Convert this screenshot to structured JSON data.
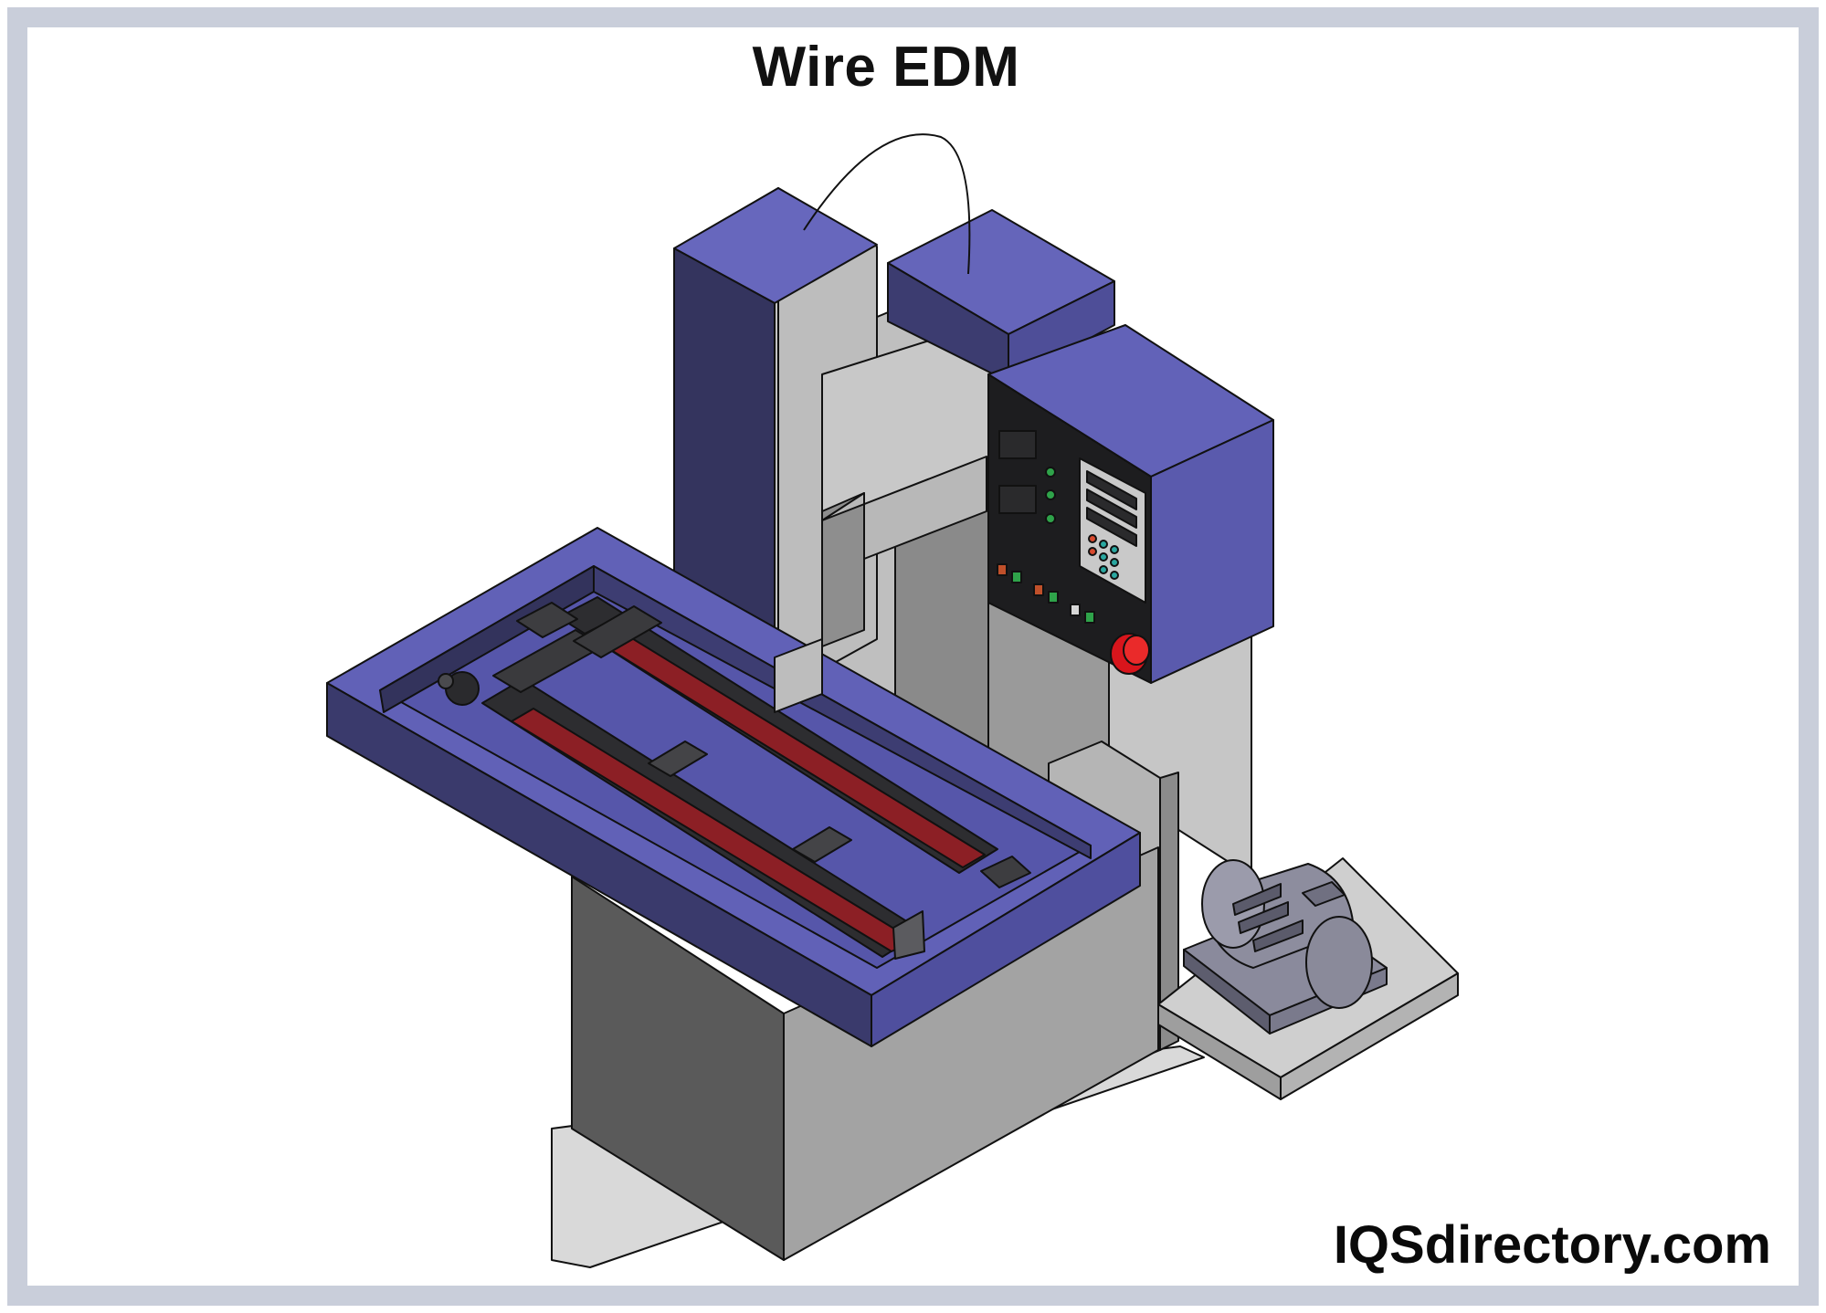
{
  "title": "Wire EDM",
  "watermark": "IQSdirectory.com",
  "colors": {
    "frame_border": "#c9ceda",
    "machine_blue": "#5f5fb4",
    "machine_blue_dark": "#34345e",
    "machine_gray": "#c3c3c3",
    "machine_gray_dark": "#6a6a6a",
    "rail_red": "#8c1f25",
    "panel_black": "#1d1d1f",
    "estop_red": "#d8151c"
  },
  "icons": [
    "wire-edm-machine-illustration",
    "emergency-stop-icon",
    "electric-motor-icon"
  ]
}
